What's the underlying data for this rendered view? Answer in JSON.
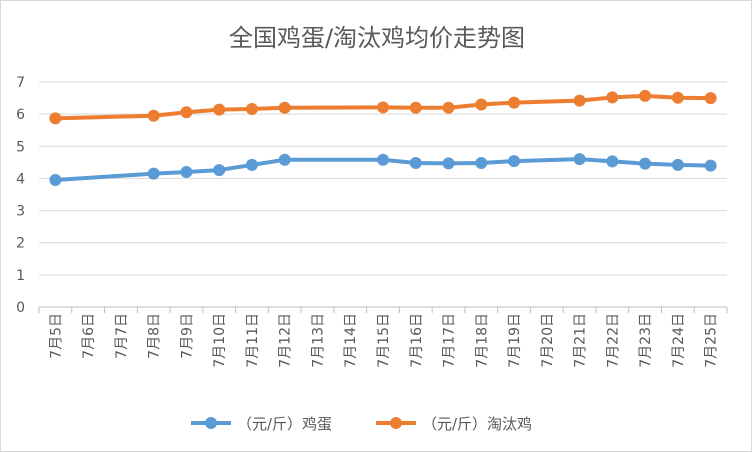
{
  "chart_data": {
    "type": "line",
    "title": "全国鸡蛋/淘汰鸡均价走势图",
    "categories": [
      "7月5日",
      "7月6日",
      "7月7日",
      "7月8日",
      "7月9日",
      "7月10日",
      "7月11日",
      "7月12日",
      "7月13日",
      "7月14日",
      "7月15日",
      "7月16日",
      "7月17日",
      "7月18日",
      "7月19日",
      "7月20日",
      "7月21日",
      "7月22日",
      "7月23日",
      "7月24日",
      "7月25日"
    ],
    "ylim": [
      0,
      7
    ],
    "yticks": [
      0,
      1,
      2,
      3,
      4,
      5,
      6,
      7
    ],
    "grid": true,
    "legend_position": "bottom",
    "series": [
      {
        "name": "（元/斤）鸡蛋",
        "color": "#5B9BD5",
        "values": [
          3.95,
          null,
          null,
          4.15,
          4.2,
          4.26,
          4.42,
          4.58,
          null,
          null,
          4.58,
          4.48,
          4.47,
          4.48,
          4.54,
          null,
          4.6,
          4.53,
          4.46,
          4.42,
          4.4
        ]
      },
      {
        "name": "（元/斤）淘汰鸡",
        "color": "#ED7D31",
        "values": [
          5.87,
          null,
          null,
          5.95,
          6.06,
          6.14,
          6.16,
          6.2,
          null,
          null,
          6.21,
          6.2,
          6.2,
          6.3,
          6.36,
          null,
          6.42,
          6.52,
          6.57,
          6.51,
          6.5
        ]
      }
    ]
  }
}
